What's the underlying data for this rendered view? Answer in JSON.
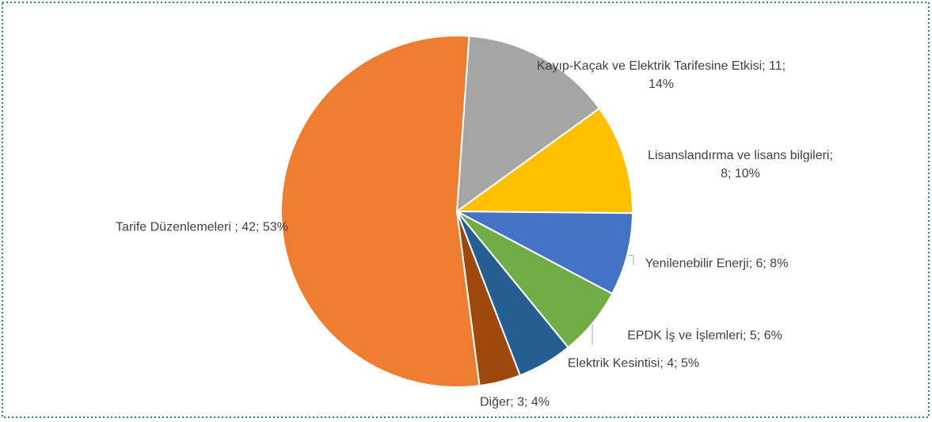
{
  "chart_data": {
    "type": "pie",
    "categories": [
      "Kayıp-Kaçak ve Elektrik Tarifesine Etkisi",
      "Lisanslandırma ve lisans bilgileri",
      "Yenilenebilir  Enerji",
      "EPDK İş ve İşlemleri",
      "Elektrik Kesintisi",
      "Diğer",
      "Tarife Düzenlemeleri "
    ],
    "values": [
      11,
      8,
      6,
      5,
      4,
      3,
      42
    ],
    "percent_labels": [
      "14%",
      "10%",
      "8%",
      "6%",
      "5%",
      "4%",
      "53%"
    ],
    "label_separator": "; ",
    "colors": [
      "#a5a5a5",
      "#ffc000",
      "#4472c4",
      "#70ad47",
      "#255e91",
      "#9e480e",
      "#ed7d31"
    ]
  }
}
